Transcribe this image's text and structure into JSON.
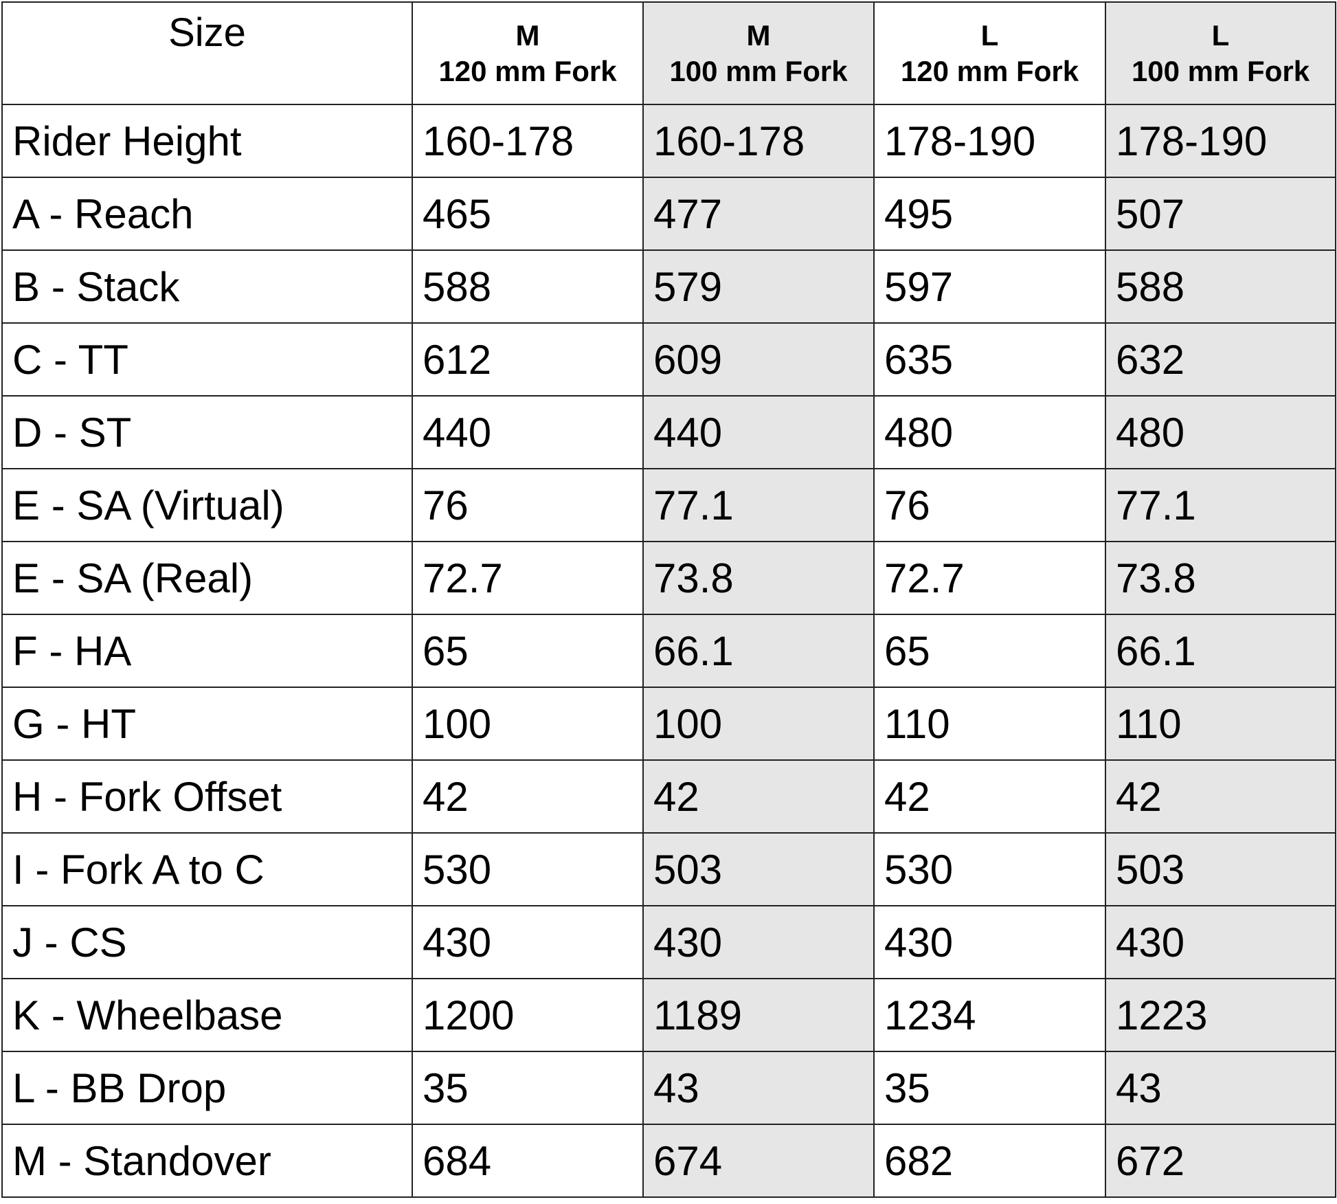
{
  "table": {
    "corner_label": "Size",
    "columns": [
      {
        "size": "M",
        "fork": "120 mm Fork",
        "shaded": false
      },
      {
        "size": "M",
        "fork": "100 mm Fork",
        "shaded": true
      },
      {
        "size": "L",
        "fork": "120 mm Fork",
        "shaded": false
      },
      {
        "size": "L",
        "fork": "100 mm Fork",
        "shaded": true
      }
    ],
    "shade_color": "#e6e6e6",
    "rows": [
      {
        "label": "Rider Height",
        "values": [
          "160-178",
          "160-178",
          "178-190",
          "178-190"
        ]
      },
      {
        "label": "A - Reach",
        "values": [
          "465",
          "477",
          "495",
          "507"
        ]
      },
      {
        "label": "B - Stack",
        "values": [
          "588",
          "579",
          "597",
          "588"
        ]
      },
      {
        "label": "C - TT",
        "values": [
          "612",
          "609",
          "635",
          "632"
        ]
      },
      {
        "label": "D - ST",
        "values": [
          "440",
          "440",
          "480",
          "480"
        ]
      },
      {
        "label": "E - SA (Virtual)",
        "values": [
          "76",
          "77.1",
          "76",
          "77.1"
        ]
      },
      {
        "label": "E - SA (Real)",
        "values": [
          "72.7",
          "73.8",
          "72.7",
          "73.8"
        ]
      },
      {
        "label": "F - HA",
        "values": [
          "65",
          "66.1",
          "65",
          "66.1"
        ]
      },
      {
        "label": "G - HT",
        "values": [
          "100",
          "100",
          "110",
          "110"
        ]
      },
      {
        "label": "H - Fork Offset",
        "values": [
          "42",
          "42",
          "42",
          "42"
        ]
      },
      {
        "label": "I - Fork A to C",
        "values": [
          "530",
          "503",
          "530",
          "503"
        ]
      },
      {
        "label": "J - CS",
        "values": [
          "430",
          "430",
          "430",
          "430"
        ]
      },
      {
        "label": "K - Wheelbase",
        "values": [
          "1200",
          "1189",
          "1234",
          "1223"
        ]
      },
      {
        "label": "L - BB Drop",
        "values": [
          "35",
          "43",
          "35",
          "43"
        ]
      },
      {
        "label": "M - Standover",
        "values": [
          "684",
          "674",
          "682",
          "672"
        ]
      }
    ]
  }
}
